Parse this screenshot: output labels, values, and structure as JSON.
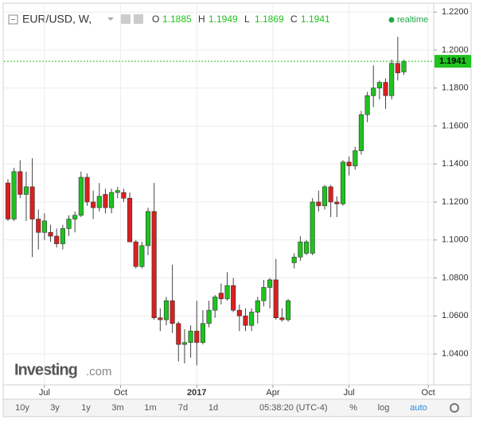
{
  "chart_data": {
    "type": "candlestick",
    "symbol": "EUR/USD, W,",
    "legend_labels": [
      "O",
      "H",
      "L",
      "C"
    ],
    "status": "realtime",
    "logo": {
      "name": "Investing",
      "suffix": ".com"
    },
    "x": [
      0,
      1,
      2,
      3,
      4,
      5,
      6,
      7,
      8,
      9,
      10,
      11,
      12,
      13,
      14,
      15,
      16,
      17,
      18,
      19,
      20,
      21,
      22,
      23,
      24,
      25,
      26,
      27,
      28,
      29,
      30,
      31,
      32,
      33,
      34,
      35,
      36,
      37,
      38,
      39,
      40,
      41,
      42,
      43,
      44,
      45,
      46,
      47,
      48,
      49,
      50,
      51,
      52,
      53,
      54,
      55,
      56,
      57,
      58,
      59,
      60,
      61,
      62,
      63,
      64,
      65
    ],
    "open": [
      1.13,
      1.111,
      1.136,
      1.124,
      1.128,
      1.111,
      1.104,
      1.104,
      1.102,
      1.098,
      1.106,
      1.111,
      1.113,
      1.133,
      1.12,
      1.117,
      1.124,
      1.117,
      1.125,
      1.125,
      1.122,
      1.099,
      1.086,
      1.097,
      1.115,
      1.059,
      1.058,
      1.068,
      1.056,
      1.045,
      1.046,
      1.052,
      1.046,
      1.056,
      1.063,
      1.072,
      1.069,
      1.076,
      1.063,
      1.06,
      1.055,
      1.062,
      1.068,
      1.075,
      1.079,
      1.059,
      1.058,
      1.088,
      1.091,
      1.093,
      1.093,
      1.12,
      1.118,
      1.128,
      1.12,
      1.119,
      1.141,
      1.139,
      1.147,
      1.166,
      1.176,
      1.18,
      1.183,
      1.176,
      1.193,
      1.1885
    ],
    "high": [
      1.132,
      1.138,
      1.142,
      1.136,
      1.143,
      1.116,
      1.114,
      1.108,
      1.106,
      1.108,
      1.113,
      1.115,
      1.136,
      1.135,
      1.126,
      1.13,
      1.127,
      1.127,
      1.128,
      1.127,
      1.125,
      1.1,
      1.099,
      1.117,
      1.13,
      1.064,
      1.07,
      1.087,
      1.057,
      1.053,
      1.055,
      1.068,
      1.063,
      1.068,
      1.071,
      1.077,
      1.083,
      1.08,
      1.066,
      1.064,
      1.064,
      1.07,
      1.079,
      1.08,
      1.09,
      1.064,
      1.069,
      1.093,
      1.102,
      1.1,
      1.122,
      1.126,
      1.129,
      1.129,
      1.123,
      1.142,
      1.144,
      1.149,
      1.168,
      1.178,
      1.192,
      1.184,
      1.185,
      1.195,
      1.207,
      1.1949
    ],
    "low": [
      1.11,
      1.11,
      1.122,
      1.11,
      1.091,
      1.095,
      1.1,
      1.099,
      1.096,
      1.095,
      1.102,
      1.104,
      1.112,
      1.118,
      1.111,
      1.115,
      1.114,
      1.114,
      1.122,
      1.12,
      1.099,
      1.085,
      1.085,
      1.092,
      1.058,
      1.052,
      1.055,
      1.051,
      1.036,
      1.035,
      1.038,
      1.034,
      1.045,
      1.054,
      1.059,
      1.066,
      1.068,
      1.062,
      1.052,
      1.052,
      1.052,
      1.056,
      1.065,
      1.064,
      1.058,
      1.057,
      1.057,
      1.085,
      1.089,
      1.092,
      1.092,
      1.115,
      1.116,
      1.112,
      1.112,
      1.118,
      1.134,
      1.137,
      1.145,
      1.162,
      1.17,
      1.174,
      1.169,
      1.174,
      1.184,
      1.1869
    ],
    "close": [
      1.111,
      1.136,
      1.124,
      1.128,
      1.111,
      1.104,
      1.11,
      1.102,
      1.098,
      1.106,
      1.111,
      1.113,
      1.133,
      1.12,
      1.117,
      1.123,
      1.117,
      1.125,
      1.126,
      1.122,
      1.099,
      1.086,
      1.097,
      1.115,
      1.059,
      1.058,
      1.068,
      1.056,
      1.045,
      1.046,
      1.052,
      1.046,
      1.056,
      1.063,
      1.07,
      1.069,
      1.076,
      1.063,
      1.06,
      1.055,
      1.062,
      1.068,
      1.075,
      1.079,
      1.059,
      1.058,
      1.068,
      1.091,
      1.099,
      1.099,
      1.12,
      1.118,
      1.128,
      1.12,
      1.119,
      1.141,
      1.139,
      1.147,
      1.166,
      1.176,
      1.18,
      1.183,
      1.176,
      1.193,
      1.188,
      1.1941
    ],
    "up_color": "#1ec31e",
    "down_color": "#d9201f",
    "wick_color": "#444444",
    "xlim": [
      -0.65,
      69.9
    ],
    "xticks": [
      {
        "value": 6,
        "label": "Jul"
      },
      {
        "value": 18.5,
        "label": "Oct"
      },
      {
        "value": 31,
        "label": "2017"
      },
      {
        "value": 43.5,
        "label": "Apr"
      },
      {
        "value": 56,
        "label": "Jul"
      },
      {
        "value": 69,
        "label": "Oct"
      }
    ],
    "ylim": [
      1.0237,
      1.2247
    ],
    "yticks": [
      {
        "value": 1.04,
        "label": "1.0400"
      },
      {
        "value": 1.06,
        "label": "1.0600"
      },
      {
        "value": 1.08,
        "label": "1.0800"
      },
      {
        "value": 1.1,
        "label": "1.1000"
      },
      {
        "value": 1.12,
        "label": "1.1200"
      },
      {
        "value": 1.14,
        "label": "1.1400"
      },
      {
        "value": 1.16,
        "label": "1.1600"
      },
      {
        "value": 1.18,
        "label": "1.1800"
      },
      {
        "value": 1.2,
        "label": "1.2000"
      },
      {
        "value": 1.22,
        "label": "1.2200"
      }
    ],
    "grid": true,
    "toolbar": {
      "ranges": [
        "10y",
        "3y",
        "1y",
        "3m",
        "1m",
        "7d",
        "1d"
      ],
      "time": "05:38:20 (UTC-4)",
      "options": [
        "%",
        "log",
        "auto"
      ]
    }
  }
}
